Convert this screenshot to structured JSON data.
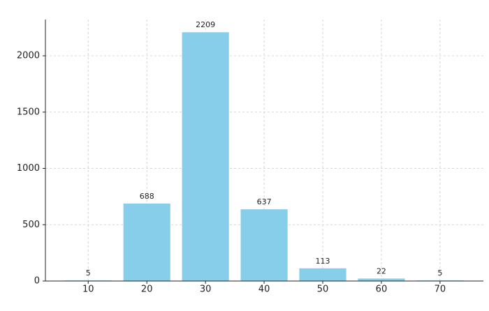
{
  "chart_data": {
    "type": "bar",
    "x": [
      10,
      20,
      30,
      40,
      50,
      60,
      70
    ],
    "values": [
      5,
      688,
      2209,
      637,
      113,
      22,
      5
    ],
    "color": "#87ceeb",
    "xlim": [
      2.7,
      77.4
    ],
    "xticks": [
      10,
      20,
      30,
      40,
      50,
      60,
      70
    ],
    "ylim": [
      0,
      2322
    ],
    "yticks": [
      0,
      500,
      1000,
      1500,
      2000
    ],
    "grid": true
  }
}
